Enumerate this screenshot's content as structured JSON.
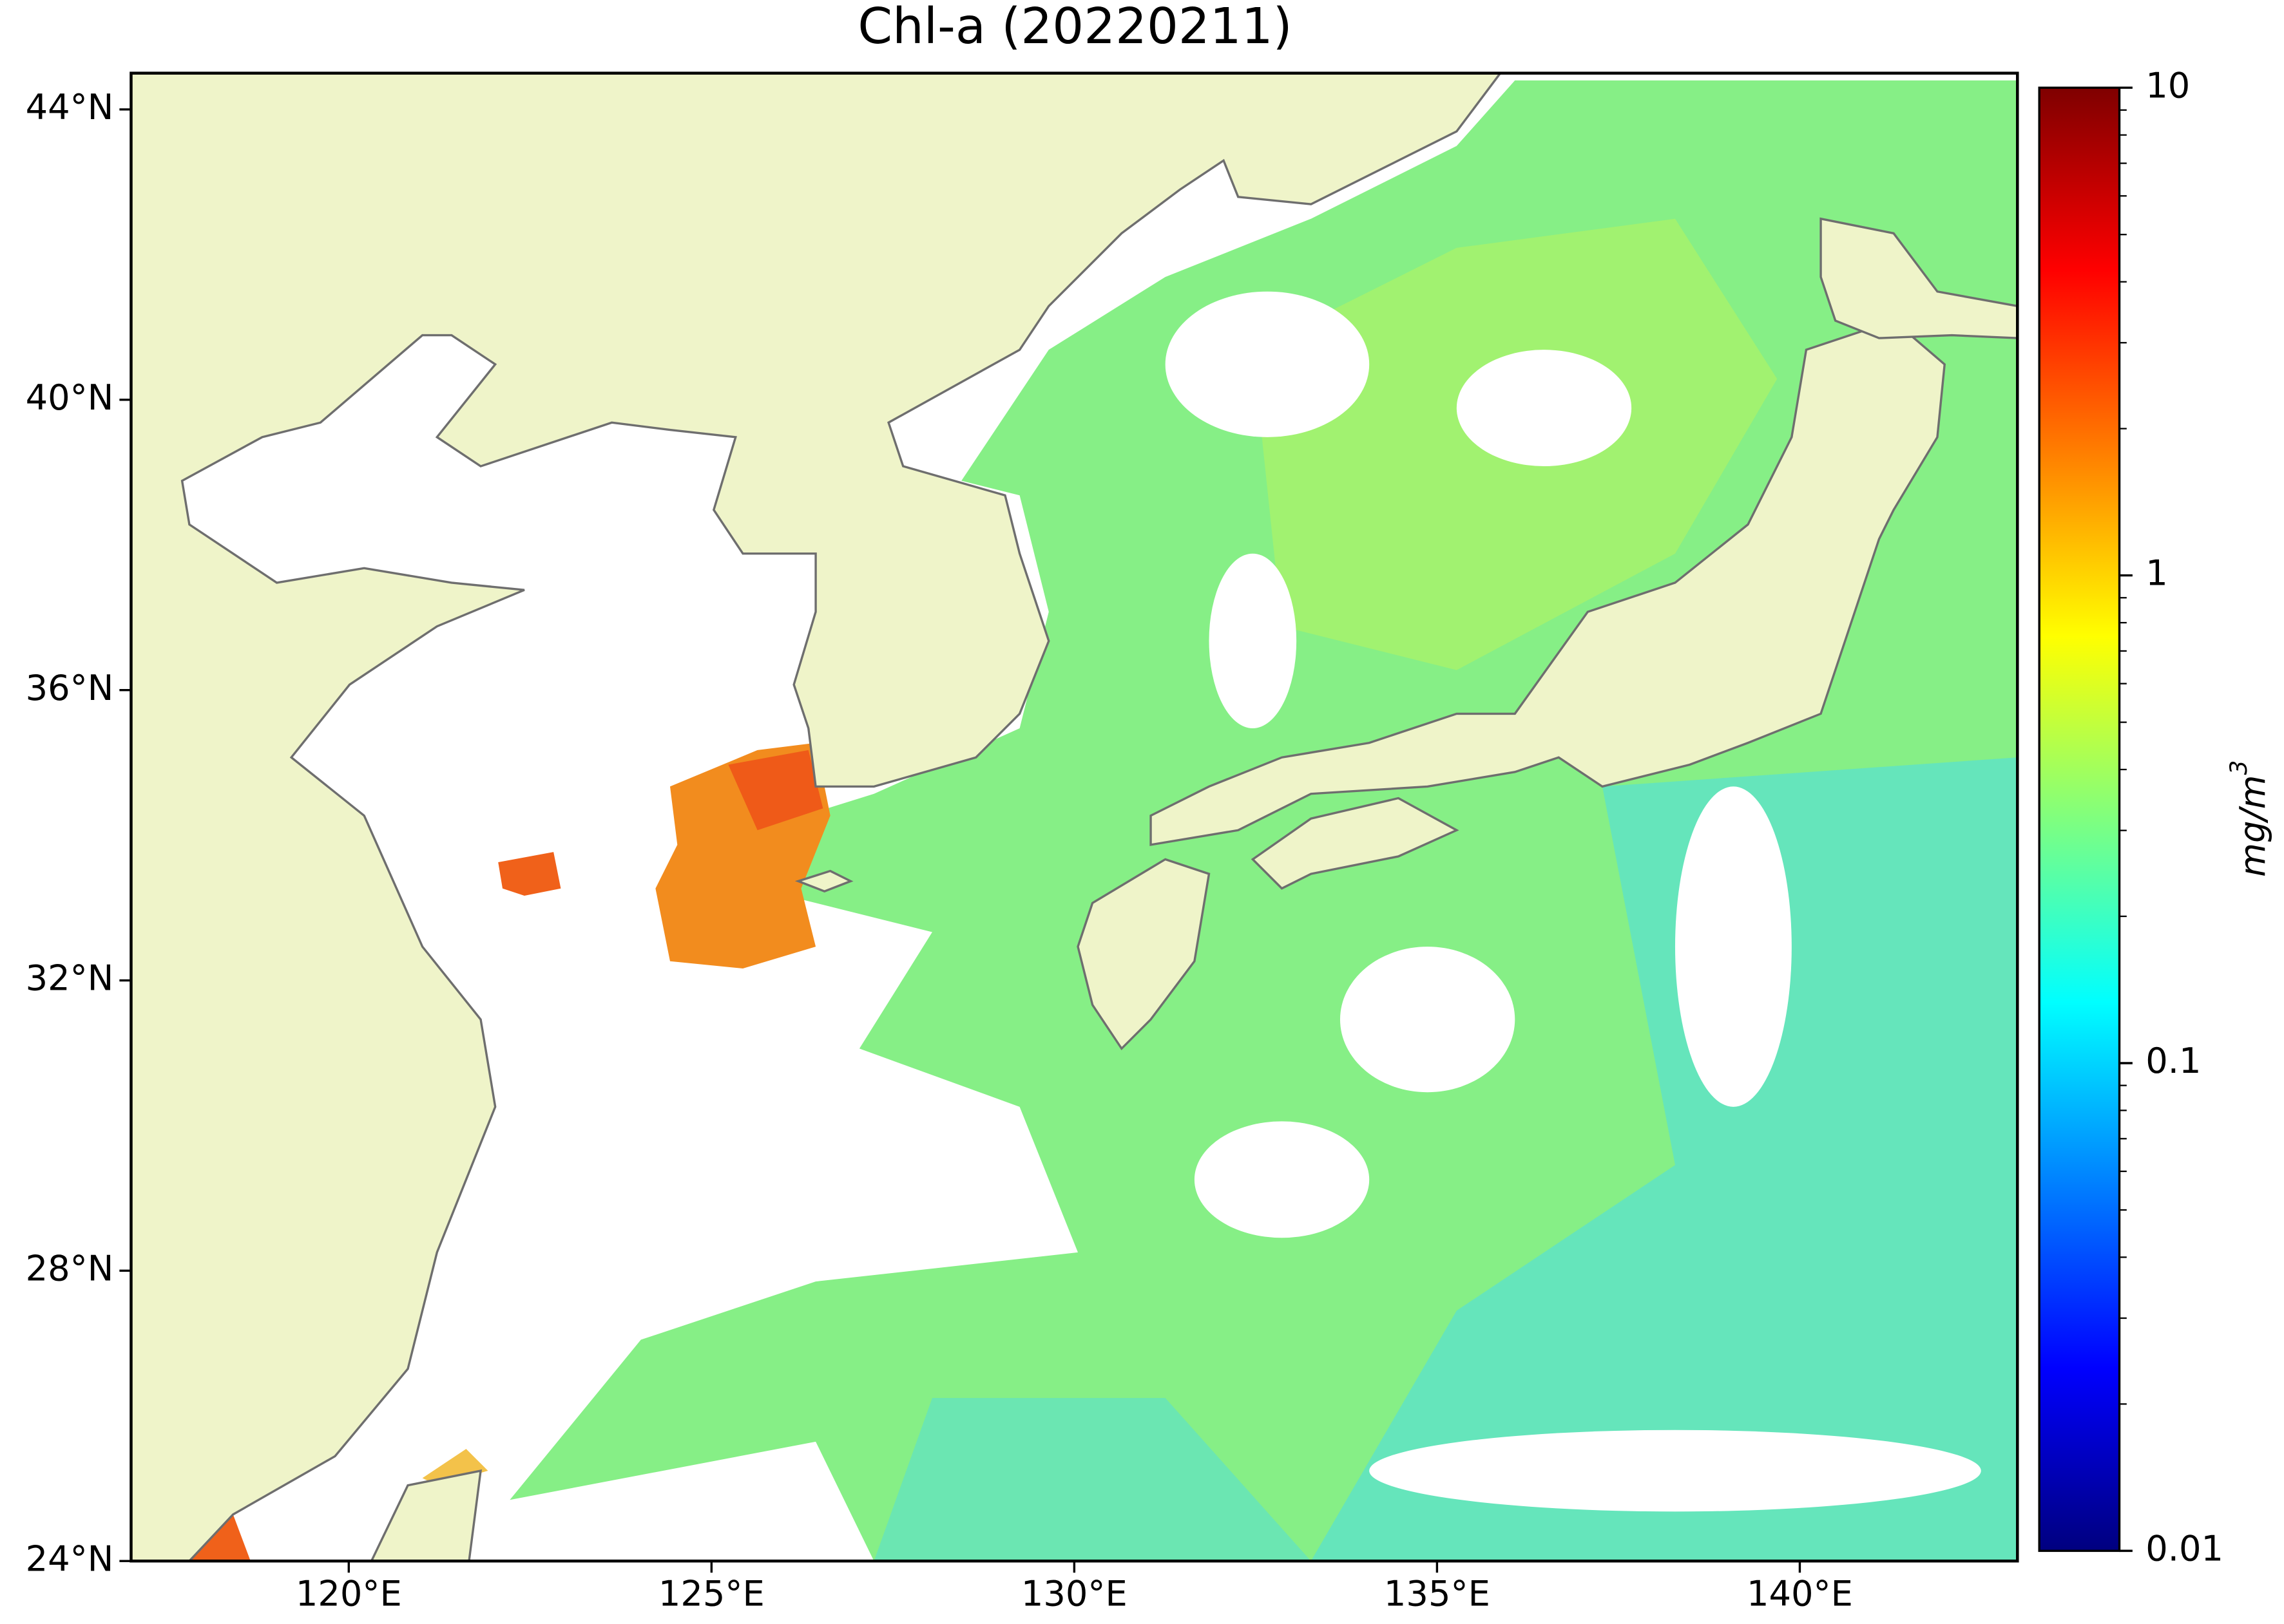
{
  "title": "Chl-a (20220211)",
  "map": {
    "xlim": [
      117,
      143
    ],
    "ylim": [
      24,
      44.5
    ],
    "xticks": [
      {
        "value": 120,
        "label": "120°E"
      },
      {
        "value": 125,
        "label": "125°E"
      },
      {
        "value": 130,
        "label": "130°E"
      },
      {
        "value": 135,
        "label": "135°E"
      },
      {
        "value": 140,
        "label": "140°E"
      }
    ],
    "yticks": [
      {
        "value": 24,
        "label": "24°N"
      },
      {
        "value": 28,
        "label": "28°N"
      },
      {
        "value": 32,
        "label": "32°N"
      },
      {
        "value": 36,
        "label": "36°N"
      },
      {
        "value": 40,
        "label": "40°N"
      },
      {
        "value": 44,
        "label": "44°N"
      }
    ]
  },
  "colorbar": {
    "label": {
      "base": "mg/m",
      "exponent": "3"
    },
    "lim": [
      0.01,
      10
    ],
    "scale": "log",
    "colormap": "jet",
    "ticks": [
      0.01,
      0.1,
      1,
      10
    ]
  }
}
